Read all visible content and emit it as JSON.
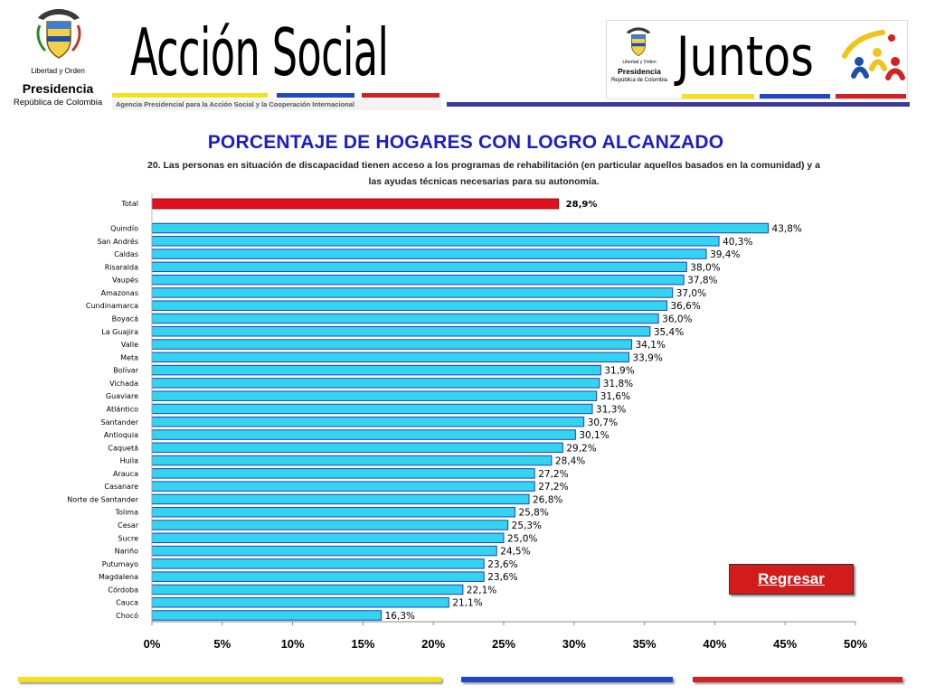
{
  "header": {
    "presidencia_motto": "Libertad y Orden",
    "presidencia_title": "Presidencia",
    "presidencia_subtitle": "República de Colombia",
    "brand_name": "Acción Social",
    "brand_tagline": "Agencia Presidencial para la Acción Social y la Cooperación Internacional",
    "juntos_motto": "Libertad y Orden",
    "juntos_presidencia": "Presidencia",
    "juntos_subtitle": "República de Colombia",
    "juntos_name": "Juntos"
  },
  "page_title": "PORCENTAJE DE HOGARES CON LOGRO ALCANZADO",
  "regresar_label": "Regresar",
  "colors": {
    "title_blue": "#1d1dc8",
    "bar_fill": "#33d4f0",
    "bar_border": "#1f3fbf",
    "total_bar": "#e0101e",
    "button_red": "#d21b1b",
    "stripe_yellow": "#f5e11a",
    "stripe_blue": "#2345c8",
    "stripe_red": "#d42021"
  },
  "chart_data": {
    "type": "bar",
    "orientation": "horizontal",
    "subtitle": "20. Las personas en situación de discapacidad tienen acceso a los programas de rehabilitación (en particular aquellos basados en la comunidad) y a las ayudas técnicas necesarias para su autonomía.",
    "total": {
      "label": "Total",
      "value": 28.9,
      "value_label": "28,9%"
    },
    "categories": [
      "Quindío",
      "San Andrés",
      "Caldas",
      "Risaralda",
      "Vaupés",
      "Amazonas",
      "Cundinamarca",
      "Boyacá",
      "La Guajira",
      "Valle",
      "Meta",
      "Bolívar",
      "Vichada",
      "Guaviare",
      "Atlántico",
      "Santander",
      "Antioquia",
      "Caquetá",
      "Huila",
      "Arauca",
      "Casanare",
      "Norte de Santander",
      "Tolima",
      "Cesar",
      "Sucre",
      "Nariño",
      "Putumayo",
      "Magdalena",
      "Córdoba",
      "Cauca",
      "Chocó"
    ],
    "values": [
      43.8,
      40.3,
      39.4,
      38.0,
      37.8,
      37.0,
      36.6,
      36.0,
      35.4,
      34.1,
      33.9,
      31.9,
      31.8,
      31.6,
      31.3,
      30.7,
      30.1,
      29.2,
      28.4,
      27.2,
      27.2,
      26.8,
      25.8,
      25.3,
      25.0,
      24.5,
      23.6,
      23.6,
      22.1,
      21.1,
      16.3
    ],
    "value_labels": [
      "43,8%",
      "40,3%",
      "39,4%",
      "38,0%",
      "37,8%",
      "37,0%",
      "36,6%",
      "36,0%",
      "35,4%",
      "34,1%",
      "33,9%",
      "31,9%",
      "31,8%",
      "31,6%",
      "31,3%",
      "30,7%",
      "30,1%",
      "29,2%",
      "28,4%",
      "27,2%",
      "27,2%",
      "26,8%",
      "25,8%",
      "25,3%",
      "25,0%",
      "24,5%",
      "23,6%",
      "23,6%",
      "22,1%",
      "21,1%",
      "16,3%"
    ],
    "xlim": [
      0,
      50
    ],
    "x_ticks": [
      0,
      5,
      10,
      15,
      20,
      25,
      30,
      35,
      40,
      45,
      50
    ],
    "x_tick_labels": [
      "0%",
      "5%",
      "10%",
      "15%",
      "20%",
      "25%",
      "30%",
      "35%",
      "40%",
      "45%",
      "50%"
    ],
    "grid": false,
    "legend": "none"
  }
}
